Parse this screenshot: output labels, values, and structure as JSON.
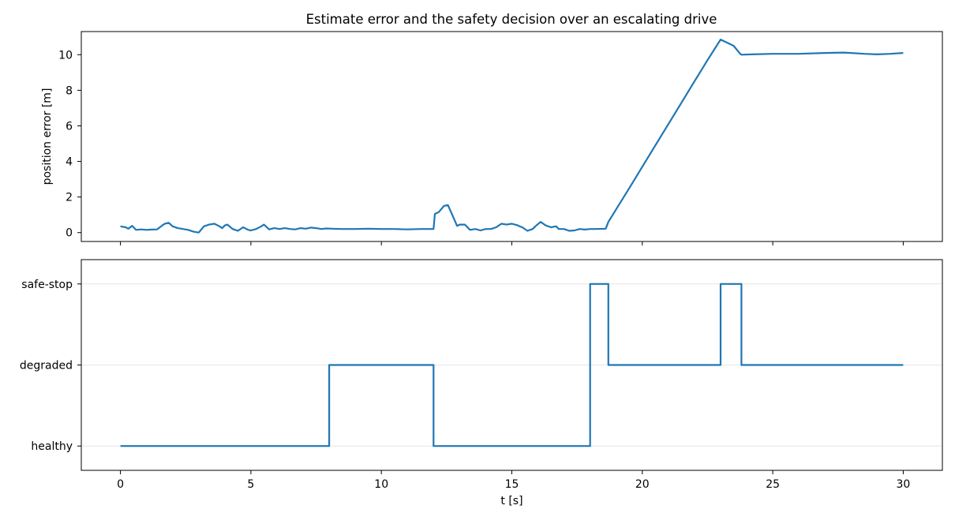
{
  "figure": {
    "title": "Estimate error and the safety decision over an escalating drive"
  },
  "colors": {
    "series": "#1f77b4",
    "grid": "#e6e6e6"
  },
  "chart_data": [
    {
      "type": "line",
      "step": true,
      "xlabel": "",
      "ylabel": "position error [m]",
      "xlim": [
        -1.5,
        31.5
      ],
      "ylim": [
        -0.5,
        11.3
      ],
      "xticks": [
        0,
        5,
        10,
        15,
        20,
        25,
        30
      ],
      "show_xtick_labels": false,
      "yticks": [
        0,
        2,
        4,
        6,
        8,
        10
      ],
      "grid": false,
      "series": [
        {
          "x": [
            0,
            0.2,
            0.3,
            0.45,
            0.6,
            0.8,
            1.0,
            1.2,
            1.4,
            1.6,
            1.7,
            1.85,
            2.0,
            2.2,
            2.4,
            2.6,
            2.8,
            3.0,
            3.2,
            3.3,
            3.4,
            3.6,
            3.8,
            3.9,
            4.0,
            4.1,
            4.3,
            4.4,
            4.5,
            4.7,
            4.9,
            5.0,
            5.2,
            5.4,
            5.5,
            5.7,
            5.9,
            6.1,
            6.3,
            6.5,
            6.7,
            6.9,
            7.1,
            7.3,
            7.5,
            7.7,
            7.9,
            8.1,
            8.5,
            9.0,
            9.5,
            10.0,
            10.5,
            11.0,
            11.5,
            12.0,
            12.05,
            12.2,
            12.4,
            12.55,
            12.7,
            12.9,
            13.0,
            13.2,
            13.4,
            13.6,
            13.8,
            14.0,
            14.2,
            14.4,
            14.6,
            14.8,
            15.0,
            15.2,
            15.3,
            15.4,
            15.6,
            15.7,
            15.8,
            15.9,
            16.1,
            16.3,
            16.5,
            16.7,
            16.8,
            17.0,
            17.2,
            17.4,
            17.6,
            17.8,
            18.0,
            18.2,
            18.6,
            18.7,
            19.5,
            20.0,
            20.5,
            21.0,
            21.5,
            22.0,
            22.5,
            23.0,
            23.5,
            23.75,
            23.8,
            24.2,
            25.0,
            26.0,
            27.0,
            27.7,
            28.0,
            28.5,
            29.0,
            29.5,
            30.0
          ],
          "y": [
            0.35,
            0.3,
            0.22,
            0.38,
            0.15,
            0.18,
            0.15,
            0.17,
            0.18,
            0.4,
            0.5,
            0.55,
            0.35,
            0.25,
            0.2,
            0.15,
            0.05,
            0.0,
            0.35,
            0.4,
            0.45,
            0.5,
            0.35,
            0.25,
            0.4,
            0.45,
            0.2,
            0.15,
            0.1,
            0.3,
            0.15,
            0.12,
            0.2,
            0.35,
            0.45,
            0.18,
            0.25,
            0.2,
            0.25,
            0.2,
            0.18,
            0.25,
            0.22,
            0.28,
            0.25,
            0.2,
            0.23,
            0.22,
            0.2,
            0.2,
            0.22,
            0.2,
            0.2,
            0.18,
            0.2,
            0.2,
            1.05,
            1.15,
            1.5,
            1.55,
            1.05,
            0.38,
            0.45,
            0.45,
            0.15,
            0.2,
            0.12,
            0.2,
            0.2,
            0.3,
            0.5,
            0.45,
            0.5,
            0.42,
            0.35,
            0.3,
            0.1,
            0.15,
            0.2,
            0.35,
            0.6,
            0.4,
            0.3,
            0.35,
            0.2,
            0.2,
            0.1,
            0.12,
            0.2,
            0.17,
            0.2,
            0.2,
            0.22,
            0.6,
            2.5,
            3.7,
            4.9,
            6.1,
            7.3,
            8.5,
            9.7,
            10.85,
            10.5,
            10.05,
            10.0,
            10.02,
            10.05,
            10.05,
            10.1,
            10.12,
            10.1,
            10.05,
            10.02,
            10.05,
            10.1
          ]
        }
      ]
    },
    {
      "type": "line",
      "step": true,
      "xlabel": "t [s]",
      "ylabel": "",
      "xlim": [
        -1.5,
        31.5
      ],
      "ylim": [
        -0.3,
        2.3
      ],
      "xticks": [
        0,
        5,
        10,
        15,
        20,
        25,
        30
      ],
      "show_xtick_labels": true,
      "ytick_values": [
        0,
        1,
        2
      ],
      "ytick_labels": [
        "healthy",
        "degraded",
        "safe-stop"
      ],
      "grid": true,
      "series": [
        {
          "x": [
            0,
            8,
            8,
            12,
            12,
            18,
            18,
            18.7,
            18.7,
            23,
            23,
            23.8,
            23.8,
            30
          ],
          "y": [
            0,
            0,
            1,
            1,
            0,
            0,
            2,
            2,
            1,
            1,
            2,
            2,
            1,
            1
          ]
        }
      ]
    }
  ]
}
